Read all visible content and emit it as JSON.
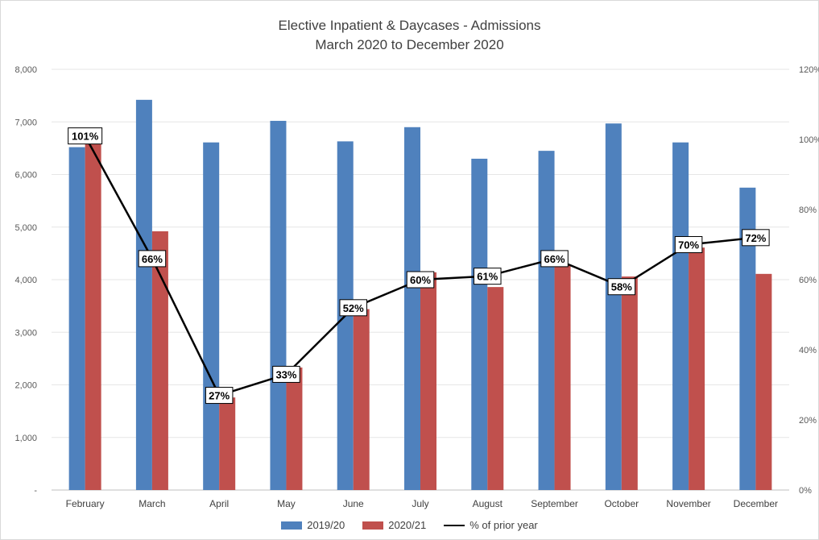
{
  "chart_data": {
    "type": "bar",
    "title_lines": [
      "Elective Inpatient & Daycases - Admissions",
      "March 2020 to December 2020"
    ],
    "categories": [
      "February",
      "March",
      "April",
      "May",
      "June",
      "July",
      "August",
      "September",
      "October",
      "November",
      "December"
    ],
    "series": [
      {
        "name": "2019/20",
        "type": "bar",
        "axis": "left",
        "color": "#4f81bd",
        "values": [
          6520,
          7420,
          6610,
          7020,
          6630,
          6900,
          6300,
          6450,
          6970,
          6610,
          5750
        ]
      },
      {
        "name": "2020/21",
        "type": "bar",
        "axis": "left",
        "color": "#c0504d",
        "values": [
          6620,
          4920,
          1760,
          2330,
          3440,
          4140,
          3860,
          4280,
          4060,
          4610,
          4110
        ]
      },
      {
        "name": "% of prior year",
        "type": "line",
        "axis": "right",
        "color": "#000000",
        "values": [
          101,
          66,
          27,
          33,
          52,
          60,
          61,
          66,
          58,
          70,
          72
        ],
        "data_labels": [
          "101%",
          "66%",
          "27%",
          "33%",
          "52%",
          "60%",
          "61%",
          "66%",
          "58%",
          "70%",
          "72%"
        ]
      }
    ],
    "y_left": {
      "ticks": [
        "-",
        "1,000",
        "2,000",
        "3,000",
        "4,000",
        "5,000",
        "6,000",
        "7,000",
        "8,000"
      ],
      "ylim": [
        0,
        8000
      ]
    },
    "y_right": {
      "ticks": [
        "0%",
        "20%",
        "40%",
        "60%",
        "80%",
        "100%",
        "120%"
      ],
      "ylim": [
        0,
        120
      ]
    },
    "grid": true,
    "legend_position": "bottom"
  }
}
